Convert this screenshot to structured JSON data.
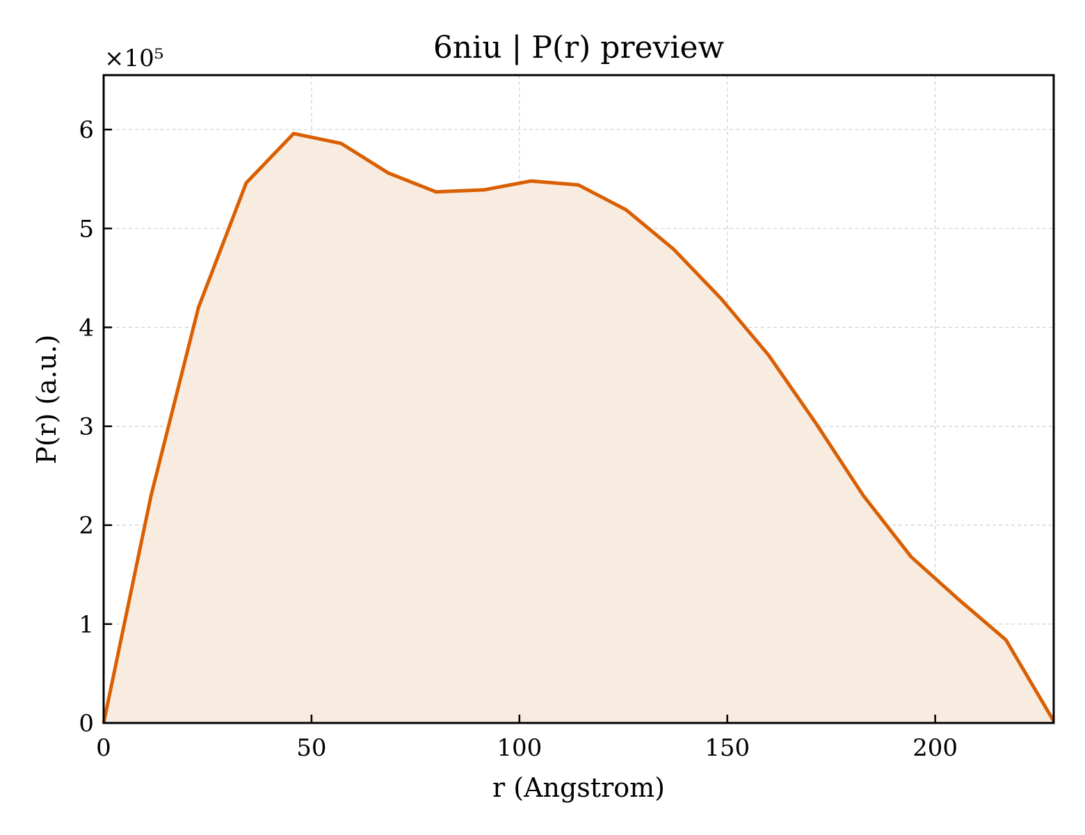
{
  "chart_data": {
    "type": "area",
    "title": "6niu | P(r) preview",
    "xlabel": "r (Angstrom)",
    "ylabel": "P(r) (a.u.)",
    "y_offset_label": "×10⁵",
    "xlim": [
      0,
      228.5
    ],
    "ylim": [
      0,
      6.55
    ],
    "xticks": [
      0,
      50,
      100,
      150,
      200
    ],
    "yticks": [
      0,
      1,
      2,
      3,
      4,
      5,
      6
    ],
    "grid": true,
    "line_color": "#d95f02",
    "fill_color": "#f8ebe0",
    "series": [
      {
        "x": [
          0,
          11.4,
          22.8,
          34.3,
          45.7,
          57.1,
          68.5,
          79.9,
          91.4,
          102.8,
          114.2,
          125.6,
          137.1,
          148.5,
          159.9,
          171.3,
          182.7,
          194.2,
          205.6,
          217.0,
          228.5
        ],
        "y": [
          0.0,
          2.3,
          4.2,
          5.46,
          5.96,
          5.86,
          5.56,
          5.37,
          5.39,
          5.48,
          5.44,
          5.19,
          4.79,
          4.29,
          3.72,
          3.03,
          2.3,
          1.68,
          1.25,
          0.84,
          0.02
        ]
      }
    ]
  }
}
